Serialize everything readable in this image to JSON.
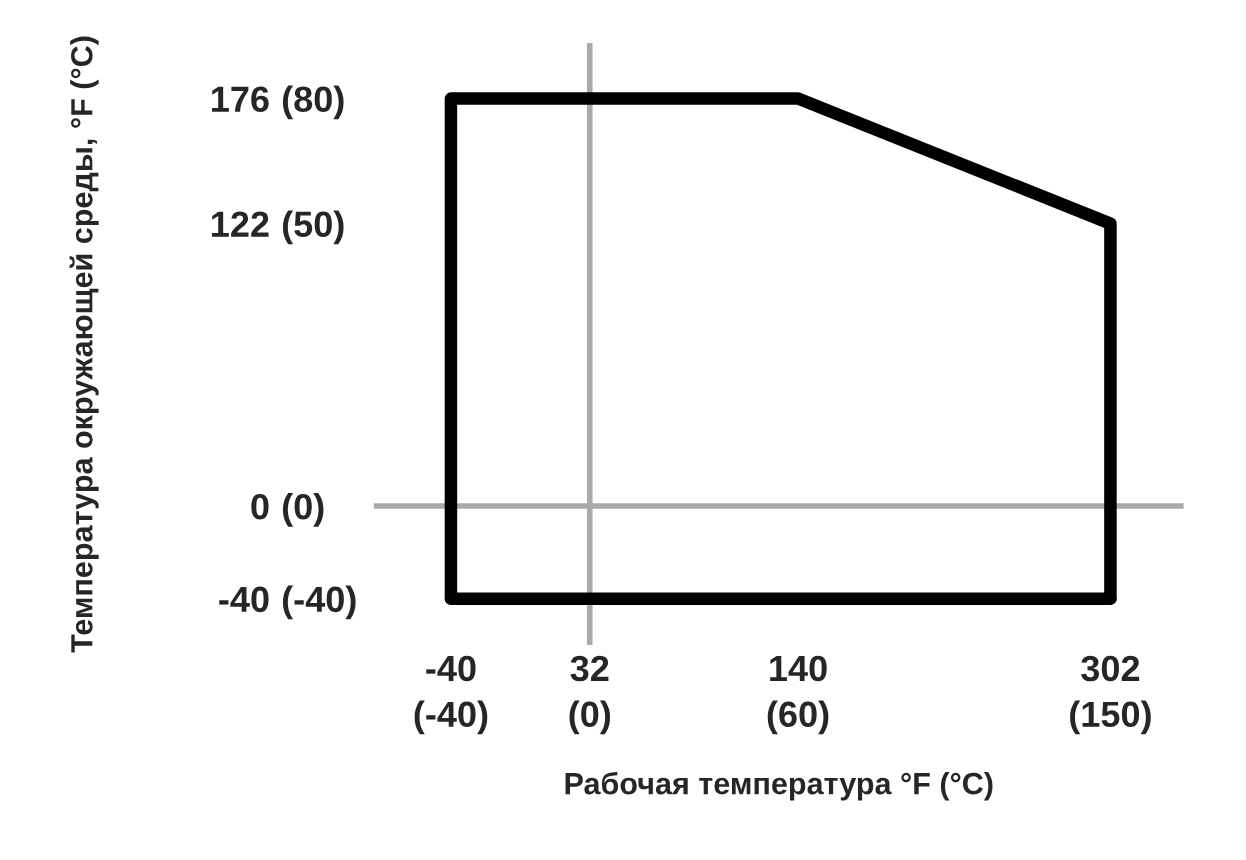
{
  "chart_data": {
    "type": "line",
    "xlabel": "Рабочая температура °F (°C)",
    "ylabel": "Температура окружающей среды, °F (°C)",
    "series": [
      {
        "color": "#000000",
        "x": [
          -40,
          -40,
          140,
          302,
          302
        ],
        "values": [
          -40,
          176,
          176,
          122,
          -40
        ]
      },
      {
        "color": "#000000",
        "x": [
          -40,
          302
        ],
        "values": [
          -40,
          -40
        ]
      }
    ],
    "xlim": [
      -80,
      340
    ],
    "ylim": [
      -60,
      200
    ],
    "xticks": [
      -40,
      32,
      140,
      302
    ],
    "yticks": [
      -40,
      0,
      122,
      176
    ],
    "annotations": [
      "(-40)",
      "(0)",
      "(50)",
      "(80)",
      "(-40)",
      "(0)",
      "(60)",
      "(150)"
    ],
    "ref_lines": [
      {
        "axis": "x",
        "value": 32,
        "color": "#aaaaaa"
      },
      {
        "axis": "y",
        "value": 0,
        "color": "#aaaaaa"
      }
    ],
    "grid": false,
    "legend": false,
    "marker": "none",
    "line_style": "solid"
  }
}
